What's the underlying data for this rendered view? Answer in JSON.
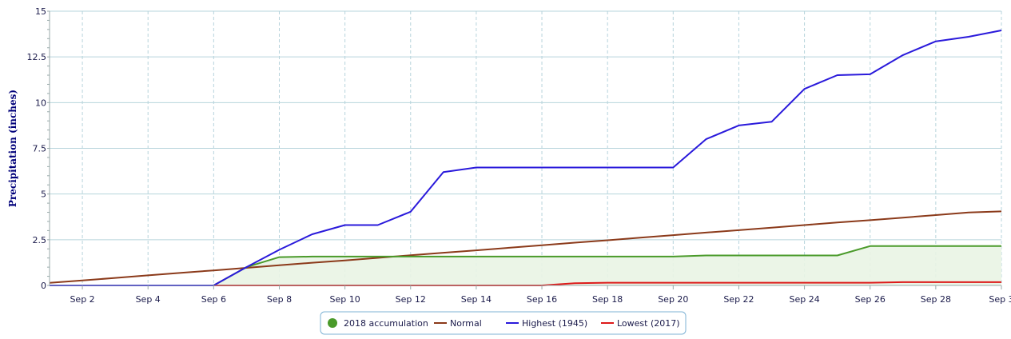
{
  "chart_data": {
    "type": "line",
    "ylabel": "Precipitation (inches)",
    "xlabel": "",
    "ylim": [
      0,
      15
    ],
    "yticks": [
      "0",
      "2.5",
      "5",
      "7.5",
      "10",
      "12.5",
      "15"
    ],
    "ytick_values": [
      0,
      2.5,
      5,
      7.5,
      10,
      12.5,
      15
    ],
    "xlim": [
      1,
      30
    ],
    "xtick_labels": [
      "Sep 2",
      "Sep 4",
      "Sep 6",
      "Sep 8",
      "Sep 10",
      "Sep 12",
      "Sep 14",
      "Sep 16",
      "Sep 18",
      "Sep 20",
      "Sep 22",
      "Sep 24",
      "Sep 26",
      "Sep 28",
      "Sep 3"
    ],
    "xtick_values": [
      2,
      4,
      6,
      8,
      10,
      12,
      14,
      16,
      18,
      20,
      22,
      24,
      26,
      28,
      30
    ],
    "grid": true,
    "legend_position": "bottom-center",
    "x": [
      1,
      2,
      3,
      4,
      5,
      6,
      7,
      8,
      9,
      10,
      11,
      12,
      13,
      14,
      15,
      16,
      17,
      18,
      19,
      20,
      21,
      22,
      23,
      24,
      25,
      26,
      27,
      28,
      29,
      30
    ],
    "series": [
      {
        "name": "2018 accumulation",
        "color": "#4a9a2a",
        "fill": "#e9f4e4",
        "marker": "circle",
        "values": [
          0,
          0,
          0,
          0,
          0,
          0,
          1.0,
          1.55,
          1.58,
          1.58,
          1.58,
          1.58,
          1.58,
          1.58,
          1.58,
          1.58,
          1.58,
          1.58,
          1.58,
          1.58,
          1.64,
          1.64,
          1.64,
          1.64,
          1.64,
          2.15,
          2.15,
          2.15,
          2.15,
          2.15
        ]
      },
      {
        "name": "Normal",
        "color": "#8b3a1a",
        "values": [
          0.14,
          0.27,
          0.41,
          0.55,
          0.69,
          0.82,
          0.96,
          1.1,
          1.24,
          1.37,
          1.51,
          1.65,
          1.79,
          1.92,
          2.06,
          2.2,
          2.34,
          2.47,
          2.61,
          2.75,
          2.89,
          3.02,
          3.16,
          3.3,
          3.44,
          3.57,
          3.71,
          3.85,
          3.99,
          4.05
        ]
      },
      {
        "name": "Highest (1945)",
        "color": "#2a1adb",
        "values": [
          0,
          0,
          0,
          0,
          0,
          0,
          1.0,
          1.95,
          2.8,
          3.3,
          3.3,
          4.03,
          6.2,
          6.45,
          6.45,
          6.45,
          6.45,
          6.45,
          6.45,
          6.45,
          8.0,
          8.75,
          8.95,
          10.75,
          11.5,
          11.55,
          12.6,
          13.35,
          13.6,
          13.95
        ]
      },
      {
        "name": "Lowest (2017)",
        "color": "#dd1a1a",
        "values": [
          0,
          0,
          0,
          0,
          0,
          0,
          0,
          0,
          0,
          0,
          0,
          0,
          0,
          0,
          0,
          0,
          0.12,
          0.15,
          0.15,
          0.15,
          0.15,
          0.15,
          0.15,
          0.15,
          0.15,
          0.15,
          0.18,
          0.18,
          0.18,
          0.18
        ]
      }
    ]
  }
}
